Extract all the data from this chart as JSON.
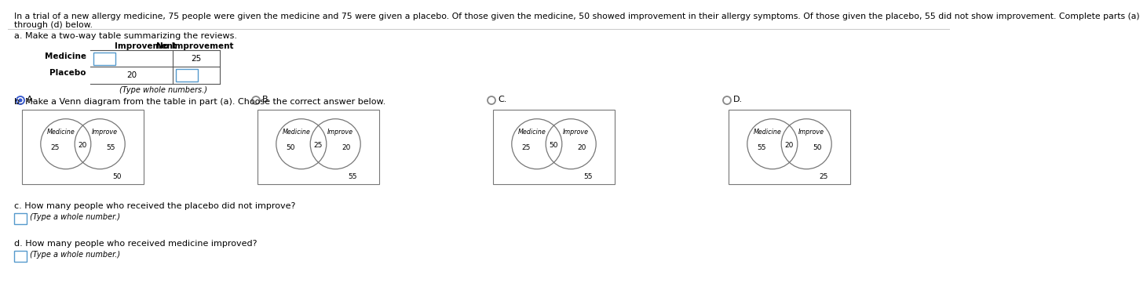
{
  "title_line1": "In a trial of a new allergy medicine, 75 people were given the medicine and 75 were given a placebo. Of those given the medicine, 50 showed improvement in their allergy symptoms. Of those given the placebo, 55 did not show improvement. Complete parts (a)",
  "title_line2": "through (d) below.",
  "part_a_label": "a. Make a two-way table summarizing the reviews.",
  "table_col1": "Improvement",
  "table_col2": "No Improvement",
  "table_row1": "Medicine",
  "table_row2": "Placebo",
  "medicine_no_improvement": "25",
  "placebo_improvement": "20",
  "table_note": "(Type whole numbers.)",
  "part_b_label": "b. Make a Venn diagram from the table in part (a). Choose the correct answer below.",
  "venn_options": [
    "A.",
    "B.",
    "C.",
    "D."
  ],
  "selected_option": "A",
  "venn_A": {
    "left_label": "Medicine",
    "right_label": "Improve",
    "left_val": "25",
    "overlap_val": "20",
    "right_val": "55",
    "bottom_val": "50"
  },
  "venn_B": {
    "left_label": "Medicine",
    "right_label": "Improve",
    "left_val": "50",
    "overlap_val": "25",
    "right_val": "20",
    "bottom_val": "55"
  },
  "venn_C": {
    "left_label": "Medicine",
    "right_label": "Improve",
    "left_val": "25",
    "overlap_val": "50",
    "right_val": "20",
    "bottom_val": "55"
  },
  "venn_D": {
    "left_label": "Medicine",
    "right_label": "Improve",
    "left_val": "55",
    "overlap_val": "20",
    "right_val": "50",
    "bottom_val": "25"
  },
  "part_c_label": "c. How many people who received the placebo did not improve?",
  "part_c_note": "(Type a whole number.)",
  "part_d_label": "d. How many people who received medicine improved?",
  "part_d_note": "(Type a whole number.)",
  "bg_color": "#ffffff",
  "text_color": "#000000",
  "radio_selected_color": "#3355cc",
  "divider_color": "#cccccc",
  "table_line_color": "#555555",
  "input_box_color": "#5599cc",
  "venn_circle_color": "#777777",
  "venn_box_color": "#777777",
  "font_size_title": 7.8,
  "font_size_body": 8.0,
  "font_size_table": 7.5,
  "font_size_venn_label": 5.8,
  "font_size_venn_num": 6.5,
  "font_size_note": 7.0
}
